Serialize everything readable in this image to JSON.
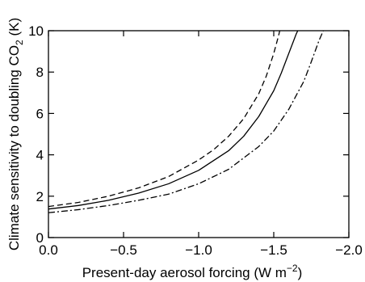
{
  "chart_data": {
    "type": "line",
    "title": "",
    "xlabel": {
      "main": "Present-day aerosol forcing (W m",
      "sup": "−2",
      "close": ")"
    },
    "ylabel": {
      "main": "Climate sensitivity to doubling CO",
      "sub": "2",
      "unit": " (K)"
    },
    "xlim": [
      0.0,
      -2.0
    ],
    "ylim": [
      0,
      10
    ],
    "x_reversed": true,
    "grid": false,
    "legend": "none",
    "xticks": [
      {
        "value": 0.0,
        "label": "0.0"
      },
      {
        "value": -0.5,
        "label": "−0.5"
      },
      {
        "value": -1.0,
        "label": "−1.0"
      },
      {
        "value": -1.5,
        "label": "−1.5"
      },
      {
        "value": -2.0,
        "label": "−2.0"
      }
    ],
    "yticks": [
      {
        "value": 0,
        "label": "0"
      },
      {
        "value": 2,
        "label": "2"
      },
      {
        "value": 4,
        "label": "4"
      },
      {
        "value": 6,
        "label": "6"
      },
      {
        "value": 8,
        "label": "8"
      },
      {
        "value": 10,
        "label": "10"
      }
    ],
    "series": [
      {
        "style": "dashed",
        "color": "#000000",
        "points": [
          [
            0.0,
            1.5
          ],
          [
            -0.2,
            1.7
          ],
          [
            -0.4,
            2.0
          ],
          [
            -0.6,
            2.4
          ],
          [
            -0.8,
            2.95
          ],
          [
            -1.0,
            3.75
          ],
          [
            -1.1,
            4.25
          ],
          [
            -1.2,
            4.9
          ],
          [
            -1.3,
            5.75
          ],
          [
            -1.4,
            6.95
          ],
          [
            -1.45,
            7.8
          ],
          [
            -1.5,
            8.9
          ],
          [
            -1.53,
            9.7
          ],
          [
            -1.54,
            10.0
          ]
        ]
      },
      {
        "style": "solid",
        "color": "#000000",
        "points": [
          [
            0.0,
            1.38
          ],
          [
            -0.2,
            1.55
          ],
          [
            -0.4,
            1.8
          ],
          [
            -0.6,
            2.15
          ],
          [
            -0.8,
            2.6
          ],
          [
            -1.0,
            3.25
          ],
          [
            -1.2,
            4.2
          ],
          [
            -1.3,
            4.9
          ],
          [
            -1.4,
            5.85
          ],
          [
            -1.5,
            7.1
          ],
          [
            -1.55,
            7.95
          ],
          [
            -1.6,
            8.9
          ],
          [
            -1.65,
            9.85
          ],
          [
            -1.66,
            10.0
          ]
        ]
      },
      {
        "style": "dash-dot",
        "color": "#000000",
        "points": [
          [
            0.0,
            1.2
          ],
          [
            -0.2,
            1.35
          ],
          [
            -0.4,
            1.55
          ],
          [
            -0.6,
            1.8
          ],
          [
            -0.8,
            2.1
          ],
          [
            -1.0,
            2.6
          ],
          [
            -1.2,
            3.3
          ],
          [
            -1.4,
            4.4
          ],
          [
            -1.5,
            5.15
          ],
          [
            -1.6,
            6.2
          ],
          [
            -1.7,
            7.55
          ],
          [
            -1.75,
            8.5
          ],
          [
            -1.8,
            9.5
          ],
          [
            -1.83,
            10.0
          ]
        ]
      }
    ]
  }
}
